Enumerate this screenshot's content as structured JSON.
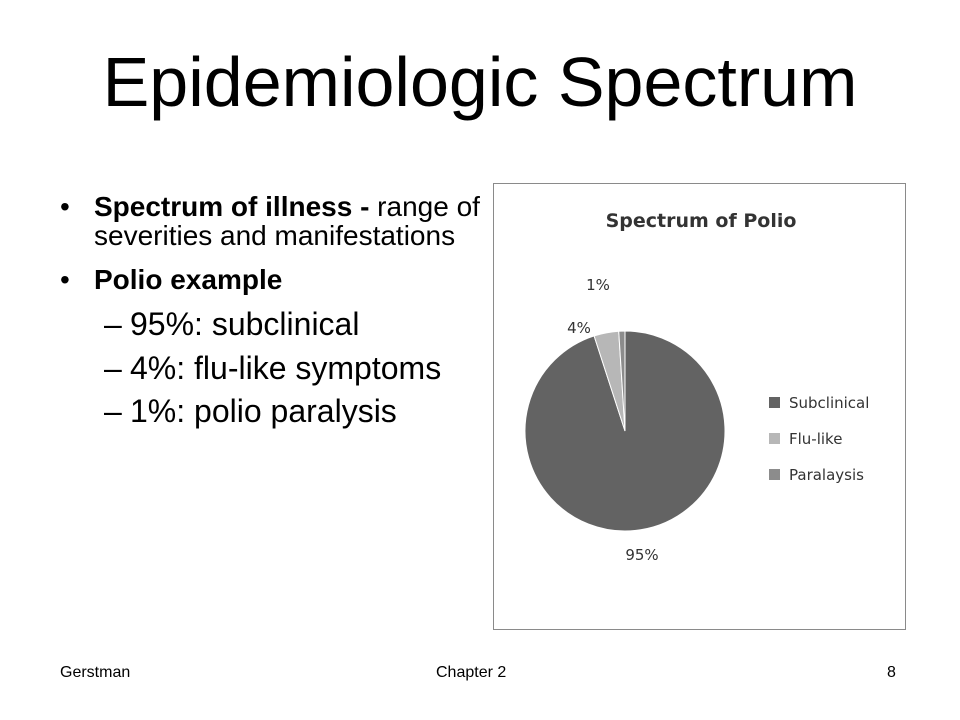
{
  "slide": {
    "title": "Epidemiologic Spectrum",
    "bullets": [
      {
        "bold": "Spectrum of illness -",
        "text": " range of  severities and manifestations"
      },
      {
        "bold": "Polio example",
        "text": ""
      }
    ],
    "sub_bullets": [
      "95%: subclinical",
      "4%: flu-like symptoms",
      "1%: polio paralysis"
    ],
    "bullet_symbol": "•",
    "dash_symbol": "–"
  },
  "chart_data": {
    "type": "pie",
    "title": "Spectrum of Polio",
    "categories": [
      "Subclinical",
      "Flu-like",
      "Paralaysis"
    ],
    "values": [
      95,
      4,
      1
    ],
    "labels": [
      "95%",
      "4%",
      "1%"
    ],
    "colors": [
      "#636363",
      "#b7b7b7",
      "#8c8c8c"
    ],
    "legend": "right"
  },
  "footer": {
    "left": "Gerstman",
    "center": "Chapter 2",
    "right": "8"
  }
}
